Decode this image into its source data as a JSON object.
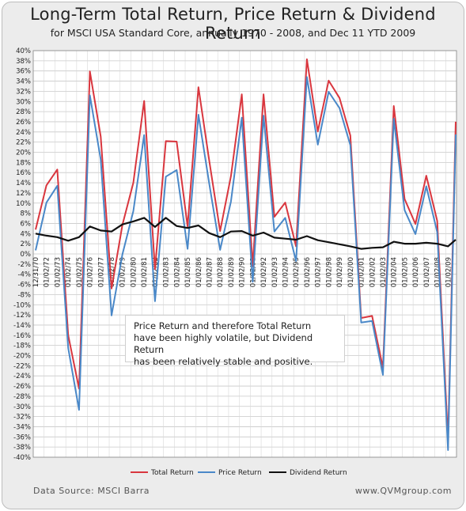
{
  "title": "Long-Term Total Return, Price Return & Dividend Return",
  "subtitle": "for MSCI USA Standard Core, annually 1970 - 2008, and Dec 11 YTD  2009",
  "annotation": {
    "line1": "Price Return and therefore Total Return",
    "line2": "have been highly volatile, but Dividend Return",
    "line3": "has been relatively stable and positive."
  },
  "footer": {
    "source": "Data Source: MSCI Barra",
    "site": "www.QVMgroup.com"
  },
  "chart_data": {
    "type": "line",
    "ylim": [
      -40,
      40
    ],
    "ytick_step": 2,
    "y_tick_format": "percent",
    "grid": true,
    "legend_position": "bottom",
    "x": [
      "12/31/70",
      "01/02/72",
      "01/02/73",
      "01/02/74",
      "01/02/75",
      "01/02/76",
      "01/02/77",
      "01/02/78",
      "01/02/79",
      "01/02/80",
      "01/02/81",
      "01/02/82",
      "01/02/83",
      "01/02/84",
      "01/02/85",
      "01/02/86",
      "01/02/87",
      "01/02/88",
      "01/02/89",
      "01/02/90",
      "01/02/91",
      "01/02/92",
      "01/02/93",
      "01/02/94",
      "01/02/95",
      "01/02/96",
      "01/02/97",
      "01/02/98",
      "01/02/99",
      "01/02/00",
      "01/02/01",
      "01/02/02",
      "01/02/03",
      "01/02/04",
      "01/02/05",
      "01/02/06",
      "01/02/07",
      "01/02/08",
      "01/02/09"
    ],
    "x_visible_labels": [
      "12/31/70",
      "01/02/72",
      "01/02/73",
      "01/02/74",
      "01/02/75",
      "01/02/76",
      "01/02/77",
      "01/02/78",
      "01/02/79",
      "01/02/80",
      "01/02/81",
      "01/02/82",
      "01/02/83",
      "01/02/84",
      "01/02/85",
      "01/02/86",
      "01/02/87",
      "01/02/88",
      "01/02/89",
      "01/02/90",
      "01/02/91",
      "01/02/92",
      "01/02/93",
      "01/02/94",
      "01/02/95",
      "01/02/96",
      "01/02/97",
      "01/02/98",
      "01/02/99",
      "01/02/00",
      "01/02/01",
      "01/02/02",
      "01/02/03",
      "01/02/04",
      "01/02/05",
      "01/02/06",
      "01/02/07",
      "01/02/08",
      "01/02/09"
    ],
    "series": [
      {
        "name": "Total Return",
        "color": "#d9363e",
        "values": [
          4.8,
          13.5,
          16.6,
          -16.0,
          -26.5,
          35.9,
          23.1,
          -6.8,
          5.7,
          14.0,
          30.1,
          -3.0,
          22.2,
          22.1,
          5.4,
          32.8,
          18.3,
          4.5,
          15.3,
          31.4,
          -2.4,
          31.4,
          7.3,
          10.1,
          1.5,
          38.3,
          24.1,
          34.1,
          30.7,
          23.3,
          -12.6,
          -12.2,
          -22.4,
          29.1,
          10.8,
          5.9,
          15.4,
          6.5,
          -36.6
        ]
      },
      {
        "name": "Price Return",
        "color": "#4a88c8",
        "values": [
          0.7,
          10.1,
          13.4,
          -18.5,
          -30.7,
          31.2,
          18.6,
          -12.1,
          -0.1,
          8.4,
          23.4,
          -9.3,
          15.2,
          16.5,
          1.0,
          27.4,
          13.8,
          0.8,
          10.3,
          26.8,
          -5.5,
          27.2,
          4.4,
          7.1,
          -1.4,
          34.8,
          21.5,
          31.9,
          28.7,
          21.4,
          -13.5,
          -13.2,
          -23.8,
          26.6,
          8.6,
          3.9,
          13.3,
          4.3,
          -38.6
        ]
      },
      {
        "name": "Dividend Return",
        "color": "#111111",
        "values": [
          4.0,
          3.6,
          3.3,
          2.6,
          3.3,
          5.4,
          4.6,
          4.4,
          5.8,
          6.4,
          7.1,
          5.3,
          7.1,
          5.5,
          5.1,
          5.6,
          4.1,
          3.3,
          4.4,
          4.5,
          3.6,
          4.2,
          3.2,
          3.0,
          2.8,
          3.5,
          2.7,
          2.3,
          1.9,
          1.5,
          1.0,
          1.2,
          1.3,
          2.4,
          2.0,
          2.0,
          2.2,
          2.0,
          1.5
        ]
      }
    ],
    "ytd_2009": {
      "Total Return": 26.0,
      "Price Return": 23.5,
      "Dividend Return": 2.8
    }
  }
}
